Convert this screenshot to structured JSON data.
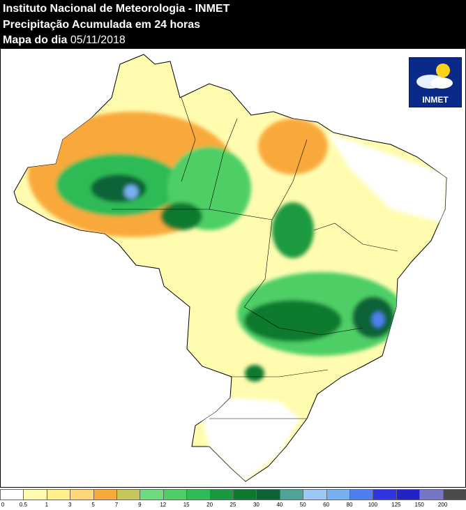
{
  "header": {
    "line1": "Instituto Nacional de Meteorologia - INMET",
    "line2": "Precipitação Acumulada em 24 horas",
    "line3_label": "Mapa do dia",
    "line3_date": "05/11/2018"
  },
  "logo": {
    "text": "INMET",
    "icon": "sun-cloud-icon"
  },
  "legend": {
    "ticks": [
      "0",
      "0.5",
      "1",
      "3",
      "5",
      "7",
      "9",
      "12",
      "15",
      "20",
      "25",
      "30",
      "40",
      "50",
      "60",
      "80",
      "100",
      "125",
      "150",
      "200"
    ],
    "colors": [
      "#ffffff",
      "#fffcb0",
      "#fff08c",
      "#ffd77a",
      "#f9a93b",
      "#c6c65a",
      "#6edb7d",
      "#4dcf66",
      "#2fbb55",
      "#1a9a3f",
      "#0b7a2e",
      "#0d6437",
      "#4da59a",
      "#9cc8f7",
      "#77b0f0",
      "#4e7ff0",
      "#2f33e0",
      "#2222c8",
      "#7676c8",
      "#4a4a4a"
    ]
  }
}
